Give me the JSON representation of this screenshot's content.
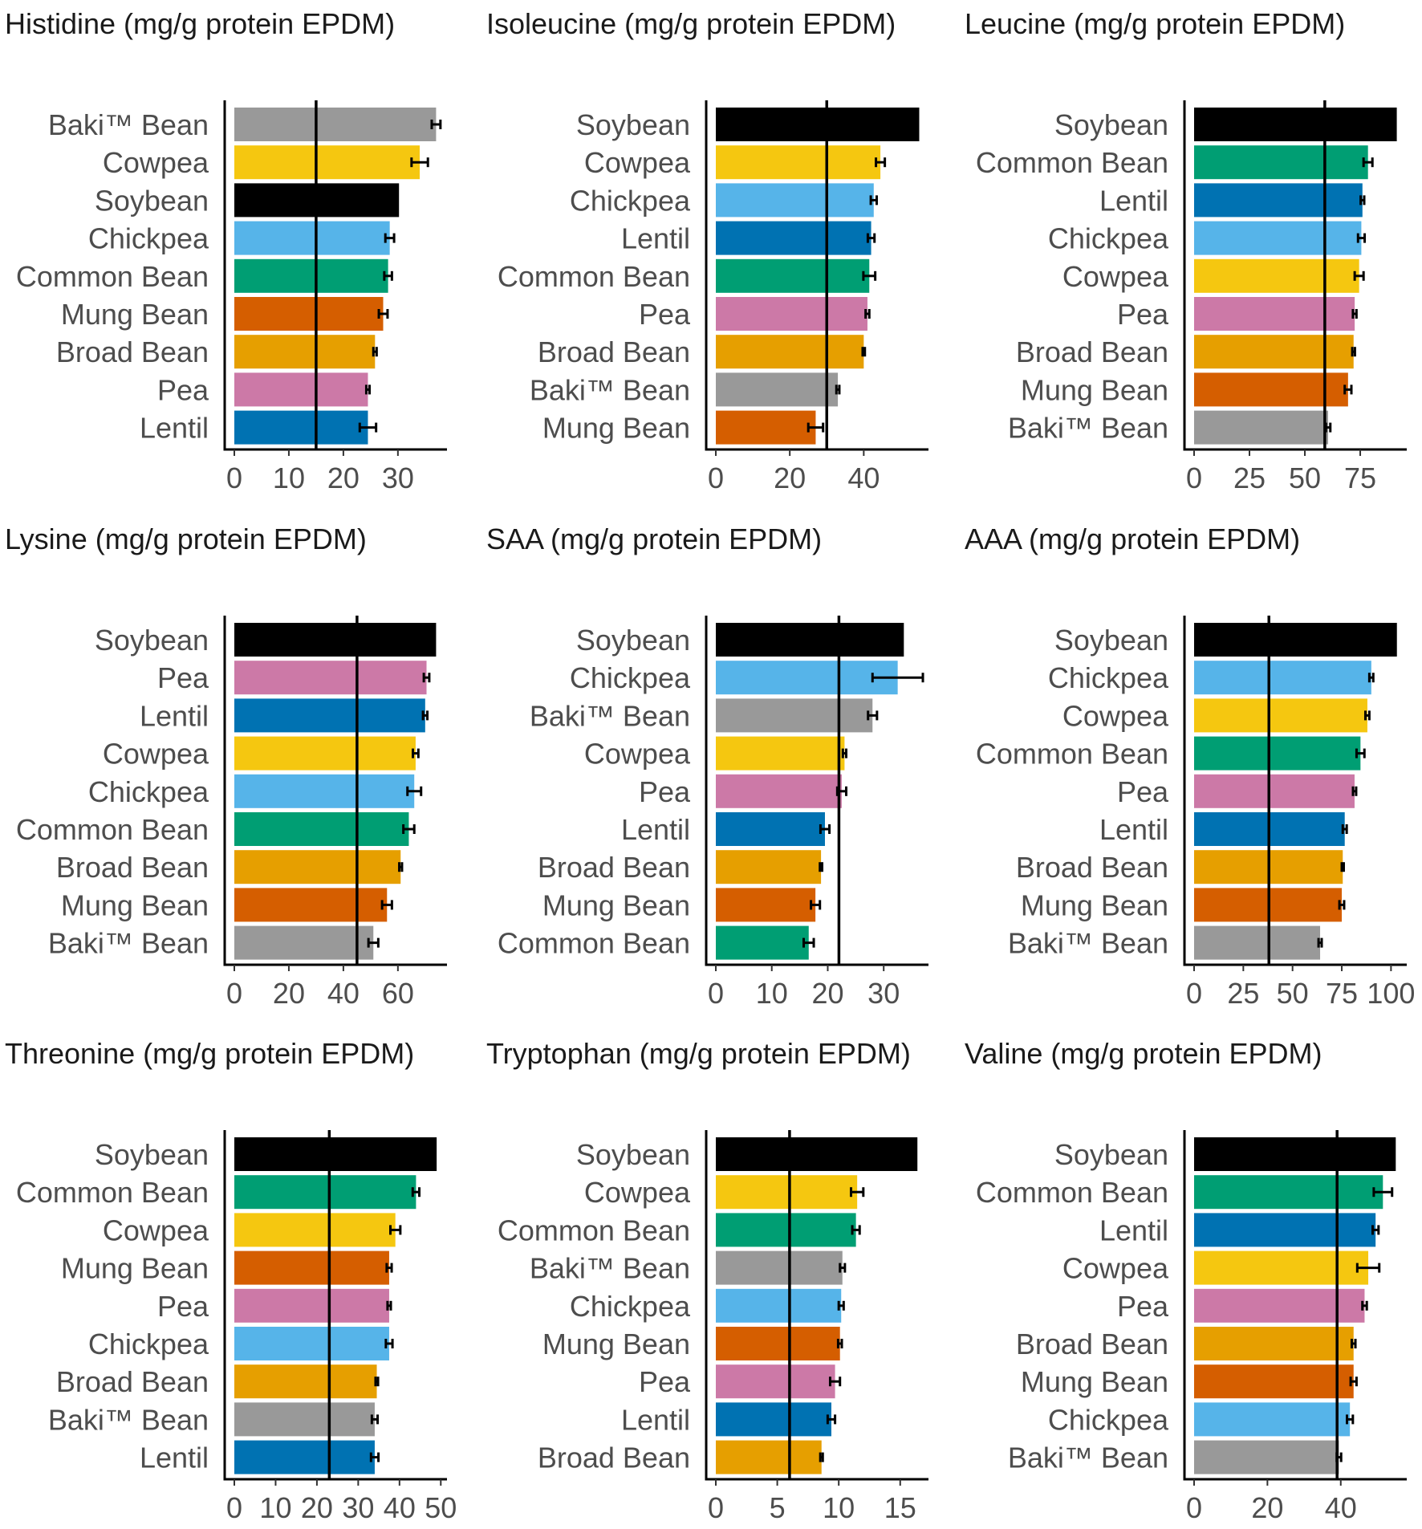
{
  "colors": {
    "Soybean": "#000000",
    "Cowpea": "#F5C710",
    "Chickpea": "#56B4E9",
    "Lentil": "#0072B2",
    "Common Bean": "#009E73",
    "Pea": "#CC79A7",
    "Broad Bean": "#E69F00",
    "Mung Bean": "#D55E00",
    "Baki™ Bean": "#999999"
  },
  "chart_data": [
    {
      "type": "bar",
      "orientation": "horizontal",
      "title": "Histidine (mg/g protein EPDM)",
      "categories": [
        "Baki™ Bean",
        "Cowpea",
        "Soybean",
        "Chickpea",
        "Common Bean",
        "Mung Bean",
        "Broad Bean",
        "Pea",
        "Lentil"
      ],
      "values": [
        37,
        34,
        30.2,
        28.5,
        28.2,
        27.3,
        25.8,
        24.5,
        24.5
      ],
      "errors": [
        0.8,
        1.5,
        0,
        0.8,
        0.7,
        0.8,
        0.3,
        0.3,
        1.5
      ],
      "reference_line": 15,
      "xlim": [
        0,
        39
      ],
      "xticks": [
        0,
        10,
        20,
        30
      ]
    },
    {
      "type": "bar",
      "orientation": "horizontal",
      "title": "Isoleucine (mg/g protein EPDM)",
      "categories": [
        "Soybean",
        "Cowpea",
        "Chickpea",
        "Lentil",
        "Common Bean",
        "Pea",
        "Broad Bean",
        "Baki™ Bean",
        "Mung Bean"
      ],
      "values": [
        55,
        44.5,
        42.7,
        42,
        41.5,
        41,
        40,
        33,
        27
      ],
      "errors": [
        0,
        1.2,
        0.8,
        0.9,
        1.6,
        0.5,
        0.3,
        0.4,
        2
      ],
      "reference_line": 30,
      "xlim": [
        0,
        57.5
      ],
      "xticks": [
        0,
        20,
        40
      ]
    },
    {
      "type": "bar",
      "orientation": "horizontal",
      "title": "Leucine (mg/g protein EPDM)",
      "categories": [
        "Soybean",
        "Common Bean",
        "Lentil",
        "Chickpea",
        "Cowpea",
        "Pea",
        "Broad Bean",
        "Mung Bean",
        "Baki™ Bean"
      ],
      "values": [
        91.5,
        78.5,
        76,
        75.5,
        74.5,
        72.5,
        72,
        69.5,
        60.5
      ],
      "errors": [
        0,
        2,
        0.8,
        1.5,
        2,
        0.8,
        0.6,
        1.5,
        1
      ],
      "reference_line": 59,
      "xlim": [
        0,
        96
      ],
      "xticks": [
        0,
        25,
        50,
        75
      ]
    },
    {
      "type": "bar",
      "orientation": "horizontal",
      "title": "Lysine (mg/g protein EPDM)",
      "categories": [
        "Soybean",
        "Pea",
        "Lentil",
        "Cowpea",
        "Chickpea",
        "Common Bean",
        "Broad Bean",
        "Mung Bean",
        "Baki™ Bean"
      ],
      "values": [
        74,
        70.5,
        70,
        66.5,
        66,
        64,
        61,
        56,
        51
      ],
      "errors": [
        0,
        1,
        0.8,
        1,
        2.5,
        2,
        0.5,
        1.8,
        1.8
      ],
      "reference_line": 45,
      "xlim": [
        0,
        78
      ],
      "xticks": [
        0,
        20,
        40,
        60
      ]
    },
    {
      "type": "bar",
      "orientation": "horizontal",
      "title": "SAA (mg/g protein EPDM)",
      "categories": [
        "Soybean",
        "Chickpea",
        "Baki™ Bean",
        "Cowpea",
        "Pea",
        "Lentil",
        "Broad Bean",
        "Mung Bean",
        "Common Bean"
      ],
      "values": [
        33.6,
        32.5,
        28,
        23,
        22.5,
        19.5,
        18.8,
        17.8,
        16.6
      ],
      "errors": [
        0,
        4.5,
        0.8,
        0.3,
        0.8,
        0.8,
        0.2,
        0.8,
        0.9
      ],
      "reference_line": 22,
      "xlim": [
        0,
        38
      ],
      "xticks": [
        0,
        10,
        20,
        30
      ]
    },
    {
      "type": "bar",
      "orientation": "horizontal",
      "title": "AAA (mg/g protein EPDM)",
      "categories": [
        "Soybean",
        "Chickpea",
        "Cowpea",
        "Common Bean",
        "Pea",
        "Lentil",
        "Broad Bean",
        "Mung Bean",
        "Baki™ Bean"
      ],
      "values": [
        103,
        90,
        88,
        84.5,
        81.5,
        76.5,
        75.5,
        75,
        64
      ],
      "errors": [
        0,
        1,
        1,
        2,
        0.8,
        1,
        0.5,
        1.2,
        0.8
      ],
      "reference_line": 38,
      "xlim": [
        0,
        108
      ],
      "xticks": [
        0,
        25,
        50,
        75,
        100
      ]
    },
    {
      "type": "bar",
      "orientation": "horizontal",
      "title": "Threonine (mg/g protein EPDM)",
      "categories": [
        "Soybean",
        "Common Bean",
        "Cowpea",
        "Mung Bean",
        "Pea",
        "Chickpea",
        "Broad Bean",
        "Baki™ Bean",
        "Lentil"
      ],
      "values": [
        49,
        44,
        39,
        37.5,
        37.5,
        37.5,
        34.5,
        34,
        34
      ],
      "errors": [
        0,
        0.8,
        1.2,
        0.6,
        0.4,
        0.8,
        0.3,
        0.7,
        0.9
      ],
      "reference_line": 23,
      "xlim": [
        0,
        51.5
      ],
      "xticks": [
        0,
        10,
        20,
        30,
        40,
        50
      ]
    },
    {
      "type": "bar",
      "orientation": "horizontal",
      "title": "Tryptophan (mg/g protein EPDM)",
      "categories": [
        "Soybean",
        "Cowpea",
        "Common Bean",
        "Baki™ Bean",
        "Chickpea",
        "Mung Bean",
        "Pea",
        "Lentil",
        "Broad Bean"
      ],
      "values": [
        16.4,
        11.5,
        11.4,
        10.3,
        10.2,
        10.1,
        9.7,
        9.4,
        8.6
      ],
      "errors": [
        0,
        0.5,
        0.3,
        0.2,
        0.2,
        0.15,
        0.4,
        0.3,
        0.1
      ],
      "reference_line": 6,
      "xlim": [
        0,
        17.3
      ],
      "xticks": [
        0,
        5,
        10,
        15
      ]
    },
    {
      "type": "bar",
      "orientation": "horizontal",
      "title": "Valine (mg/g protein EPDM)",
      "categories": [
        "Soybean",
        "Common Bean",
        "Lentil",
        "Cowpea",
        "Pea",
        "Broad Bean",
        "Mung Bean",
        "Chickpea",
        "Baki™ Bean"
      ],
      "values": [
        55,
        51.5,
        49.5,
        47.5,
        46.5,
        43.5,
        43.5,
        42.5,
        39.5
      ],
      "errors": [
        0,
        2.5,
        0.8,
        3,
        0.6,
        0.5,
        0.8,
        0.8,
        0.6
      ],
      "reference_line": 39,
      "xlim": [
        0,
        58
      ],
      "xticks": [
        0,
        20,
        40
      ]
    }
  ]
}
